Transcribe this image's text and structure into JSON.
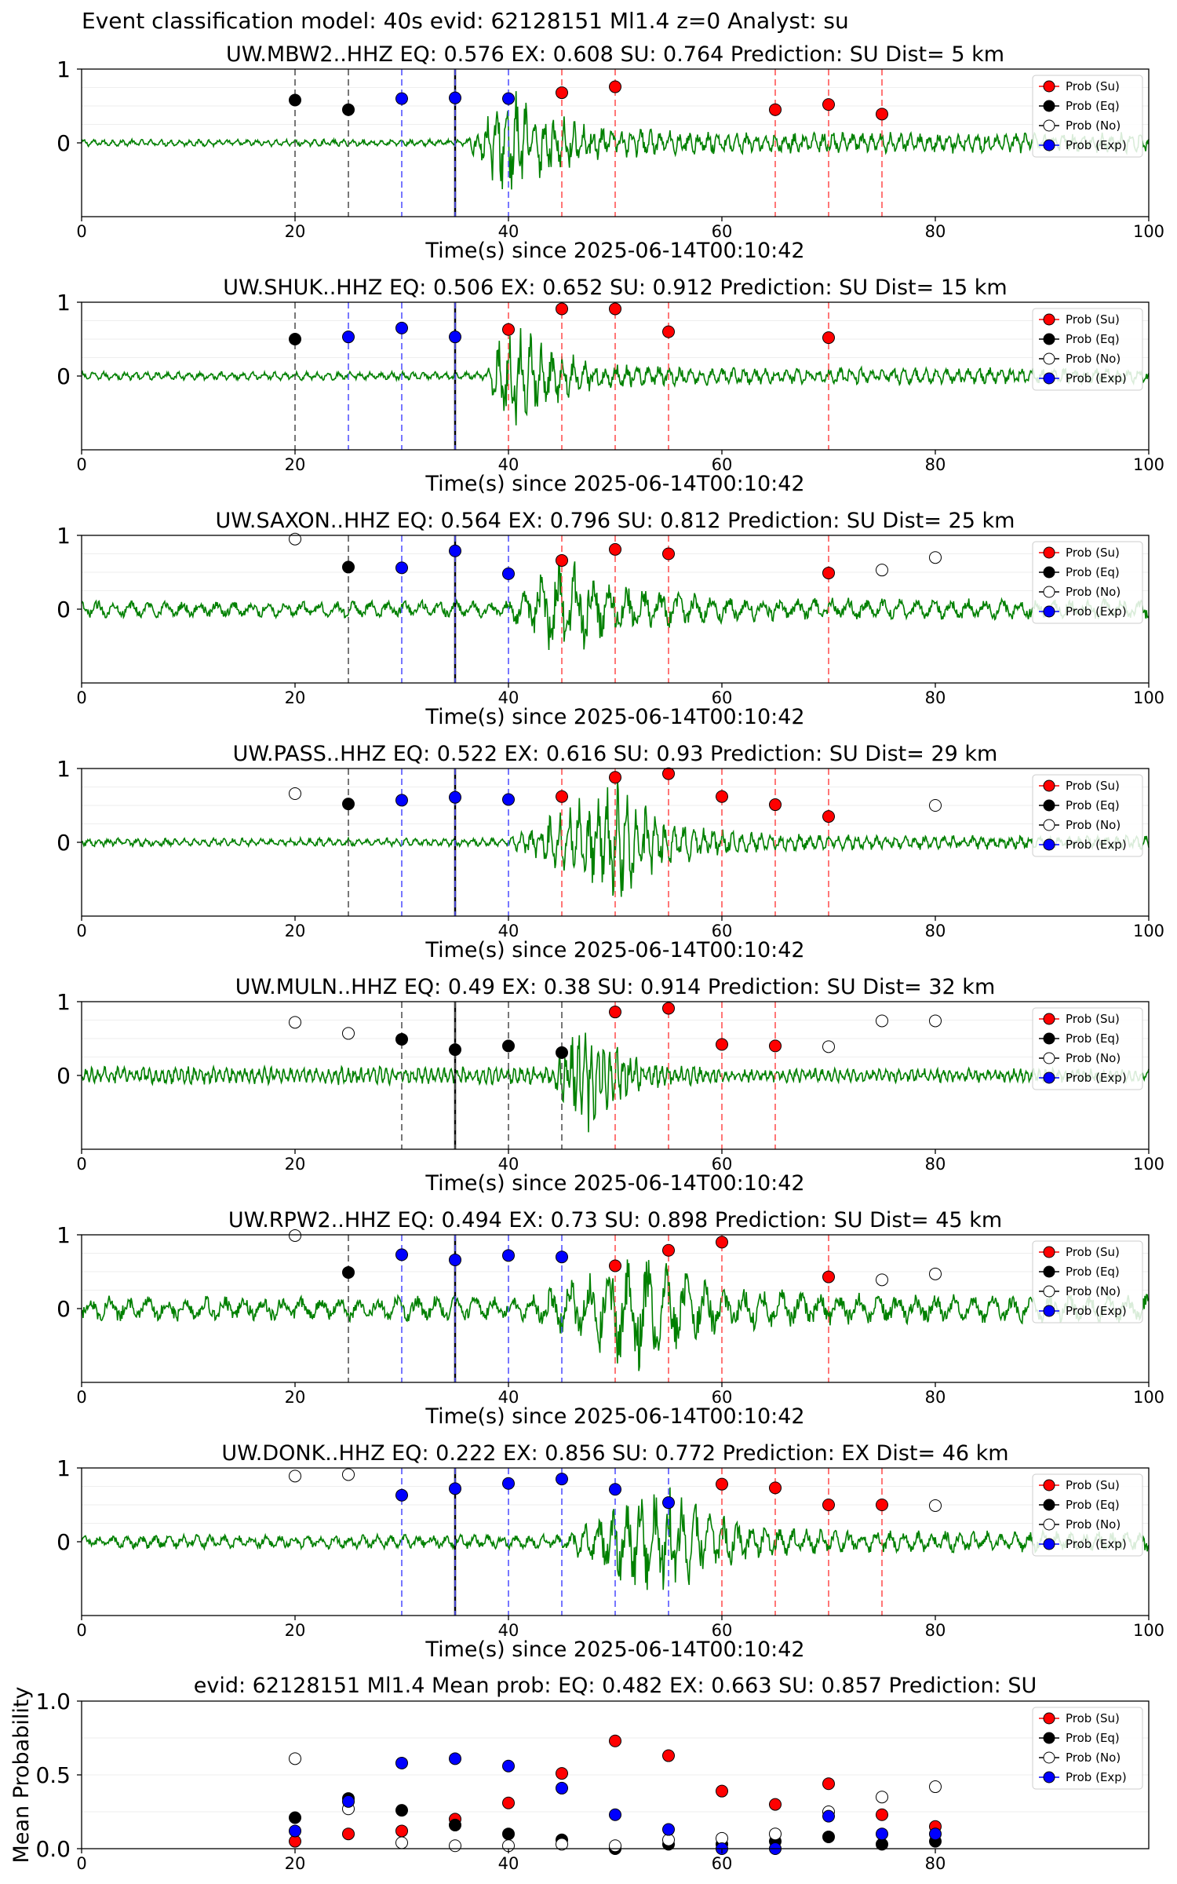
{
  "figure": {
    "title": "Event classification model: 40s evid: 62128151 Ml1.4 z=0 Analyst: su",
    "xlabel": "Time(s) since 2025-06-14T00:10:42",
    "legend_labels": [
      "Prob (Su)",
      "Prob (Eq)",
      "Prob (No)",
      "Prob (Exp)"
    ],
    "colors": {
      "su": "#ff0000",
      "eq": "#000000",
      "no": "#ffffff",
      "exp": "#0000ff",
      "trace": "#008000"
    }
  },
  "chart_data": [
    {
      "type": "scatter",
      "title": "UW.MBW2..HHZ   EQ: 0.576  EX: 0.608  SU: 0.764   Prediction: SU    Dist= 5 km",
      "xlabel": "Time(s) since 2025-06-14T00:10:42",
      "xlim": [
        0,
        100
      ],
      "ylim": [
        -1,
        1
      ],
      "xticks": [
        0,
        20,
        40,
        60,
        80,
        100
      ],
      "yticks": [
        1,
        0
      ],
      "trace": {
        "amp": 0.05,
        "onset": 36,
        "peak": 40,
        "peakAmp": 0.8,
        "decay": 12,
        "tail": 0.15,
        "period": 0.9
      },
      "pick_line": 35,
      "points": [
        {
          "t": 20,
          "p": 0.58,
          "cls": "eq"
        },
        {
          "t": 25,
          "p": 0.45,
          "cls": "eq"
        },
        {
          "t": 30,
          "p": 0.6,
          "cls": "exp"
        },
        {
          "t": 35,
          "p": 0.61,
          "cls": "exp"
        },
        {
          "t": 40,
          "p": 0.6,
          "cls": "exp"
        },
        {
          "t": 45,
          "p": 0.68,
          "cls": "su"
        },
        {
          "t": 50,
          "p": 0.76,
          "cls": "su"
        },
        {
          "t": 65,
          "p": 0.45,
          "cls": "su"
        },
        {
          "t": 70,
          "p": 0.52,
          "cls": "su"
        },
        {
          "t": 75,
          "p": 0.39,
          "cls": "su"
        }
      ]
    },
    {
      "type": "scatter",
      "title": "UW.SHUK..HHZ   EQ: 0.506  EX: 0.652  SU: 0.912   Prediction: SU    Dist= 15 km",
      "xlabel": "Time(s) since 2025-06-14T00:10:42",
      "xlim": [
        0,
        100
      ],
      "ylim": [
        -1,
        1
      ],
      "xticks": [
        0,
        20,
        40,
        60,
        80,
        100
      ],
      "yticks": [
        1,
        0
      ],
      "trace": {
        "amp": 0.06,
        "onset": 38,
        "peak": 40,
        "peakAmp": 0.95,
        "decay": 10,
        "tail": 0.12,
        "period": 1.0
      },
      "pick_line": 35,
      "points": [
        {
          "t": 20,
          "p": 0.5,
          "cls": "eq"
        },
        {
          "t": 25,
          "p": 0.53,
          "cls": "exp"
        },
        {
          "t": 30,
          "p": 0.65,
          "cls": "exp"
        },
        {
          "t": 35,
          "p": 0.53,
          "cls": "exp"
        },
        {
          "t": 40,
          "p": 0.63,
          "cls": "su"
        },
        {
          "t": 45,
          "p": 0.91,
          "cls": "su"
        },
        {
          "t": 50,
          "p": 0.91,
          "cls": "su"
        },
        {
          "t": 55,
          "p": 0.6,
          "cls": "su"
        },
        {
          "t": 70,
          "p": 0.52,
          "cls": "su"
        }
      ]
    },
    {
      "type": "scatter",
      "title": "UW.SAXON..HHZ   EQ: 0.564  EX: 0.796  SU: 0.812   Prediction: SU    Dist= 25 km",
      "xlabel": "Time(s) since 2025-06-14T00:10:42",
      "xlim": [
        0,
        100
      ],
      "ylim": [
        -1,
        1
      ],
      "xticks": [
        0,
        20,
        40,
        60,
        80,
        100
      ],
      "yticks": [
        1,
        0
      ],
      "trace": {
        "amp": 0.12,
        "onset": 40,
        "peak": 45,
        "peakAmp": 0.8,
        "decay": 14,
        "tail": 0.15,
        "period": 1.6
      },
      "pick_line": 35,
      "points": [
        {
          "t": 20,
          "p": 0.95,
          "cls": "no"
        },
        {
          "t": 25,
          "p": 0.57,
          "cls": "eq"
        },
        {
          "t": 30,
          "p": 0.56,
          "cls": "exp"
        },
        {
          "t": 35,
          "p": 0.79,
          "cls": "exp"
        },
        {
          "t": 40,
          "p": 0.48,
          "cls": "exp"
        },
        {
          "t": 45,
          "p": 0.66,
          "cls": "su"
        },
        {
          "t": 50,
          "p": 0.81,
          "cls": "su"
        },
        {
          "t": 55,
          "p": 0.75,
          "cls": "su"
        },
        {
          "t": 70,
          "p": 0.49,
          "cls": "su"
        },
        {
          "t": 75,
          "p": 0.53,
          "cls": "no"
        },
        {
          "t": 80,
          "p": 0.7,
          "cls": "no"
        }
      ]
    },
    {
      "type": "scatter",
      "title": "UW.PASS..HHZ   EQ: 0.522  EX: 0.616  SU: 0.93   Prediction: SU    Dist= 29 km",
      "xlabel": "Time(s) since 2025-06-14T00:10:42",
      "xlim": [
        0,
        100
      ],
      "ylim": [
        -1,
        1
      ],
      "xticks": [
        0,
        20,
        40,
        60,
        80,
        100
      ],
      "yticks": [
        1,
        0
      ],
      "trace": {
        "amp": 0.06,
        "onset": 40,
        "peak": 50,
        "peakAmp": 0.9,
        "decay": 12,
        "tail": 0.1,
        "period": 0.9
      },
      "pick_line": 35,
      "points": [
        {
          "t": 20,
          "p": 0.66,
          "cls": "no"
        },
        {
          "t": 25,
          "p": 0.52,
          "cls": "eq"
        },
        {
          "t": 30,
          "p": 0.57,
          "cls": "exp"
        },
        {
          "t": 35,
          "p": 0.61,
          "cls": "exp"
        },
        {
          "t": 40,
          "p": 0.58,
          "cls": "exp"
        },
        {
          "t": 45,
          "p": 0.62,
          "cls": "su"
        },
        {
          "t": 50,
          "p": 0.88,
          "cls": "su"
        },
        {
          "t": 55,
          "p": 0.93,
          "cls": "su"
        },
        {
          "t": 60,
          "p": 0.62,
          "cls": "su"
        },
        {
          "t": 65,
          "p": 0.51,
          "cls": "su"
        },
        {
          "t": 70,
          "p": 0.35,
          "cls": "su"
        },
        {
          "t": 80,
          "p": 0.5,
          "cls": "no"
        }
      ]
    },
    {
      "type": "scatter",
      "title": "UW.MULN..HHZ   EQ: 0.49  EX: 0.38  SU: 0.914   Prediction: SU    Dist= 32 km",
      "xlabel": "Time(s) since 2025-06-14T00:10:42",
      "xlim": [
        0,
        100
      ],
      "ylim": [
        -1,
        1
      ],
      "xticks": [
        0,
        20,
        40,
        60,
        80,
        100
      ],
      "yticks": [
        1,
        0
      ],
      "trace": {
        "amp": 0.13,
        "onset": 44,
        "peak": 47,
        "peakAmp": 0.95,
        "decay": 8,
        "tail": 0.1,
        "period": 0.6
      },
      "pick_line": 35,
      "points": [
        {
          "t": 20,
          "p": 0.72,
          "cls": "no"
        },
        {
          "t": 25,
          "p": 0.57,
          "cls": "no"
        },
        {
          "t": 30,
          "p": 0.49,
          "cls": "eq"
        },
        {
          "t": 35,
          "p": 0.35,
          "cls": "eq"
        },
        {
          "t": 40,
          "p": 0.4,
          "cls": "eq"
        },
        {
          "t": 45,
          "p": 0.31,
          "cls": "eq"
        },
        {
          "t": 50,
          "p": 0.86,
          "cls": "su"
        },
        {
          "t": 55,
          "p": 0.91,
          "cls": "su"
        },
        {
          "t": 60,
          "p": 0.42,
          "cls": "su"
        },
        {
          "t": 65,
          "p": 0.4,
          "cls": "su"
        },
        {
          "t": 70,
          "p": 0.39,
          "cls": "no"
        },
        {
          "t": 75,
          "p": 0.74,
          "cls": "no"
        },
        {
          "t": 80,
          "p": 0.74,
          "cls": "no"
        }
      ]
    },
    {
      "type": "scatter",
      "title": "UW.RPW2..HHZ   EQ: 0.494  EX: 0.73  SU: 0.898   Prediction: SU    Dist= 45 km",
      "xlabel": "Time(s) since 2025-06-14T00:10:42",
      "xlim": [
        0,
        100
      ],
      "ylim": [
        -1,
        1
      ],
      "xticks": [
        0,
        20,
        40,
        60,
        80,
        100
      ],
      "yticks": [
        1,
        0
      ],
      "trace": {
        "amp": 0.18,
        "onset": 42,
        "peak": 52,
        "peakAmp": 0.9,
        "decay": 14,
        "tail": 0.2,
        "period": 1.8
      },
      "pick_line": 35,
      "points": [
        {
          "t": 20,
          "p": 0.99,
          "cls": "no"
        },
        {
          "t": 25,
          "p": 0.49,
          "cls": "eq"
        },
        {
          "t": 30,
          "p": 0.73,
          "cls": "exp"
        },
        {
          "t": 35,
          "p": 0.66,
          "cls": "exp"
        },
        {
          "t": 40,
          "p": 0.72,
          "cls": "exp"
        },
        {
          "t": 45,
          "p": 0.7,
          "cls": "exp"
        },
        {
          "t": 50,
          "p": 0.58,
          "cls": "su"
        },
        {
          "t": 55,
          "p": 0.79,
          "cls": "su"
        },
        {
          "t": 60,
          "p": 0.9,
          "cls": "su"
        },
        {
          "t": 70,
          "p": 0.43,
          "cls": "su"
        },
        {
          "t": 75,
          "p": 0.39,
          "cls": "no"
        },
        {
          "t": 80,
          "p": 0.47,
          "cls": "no"
        }
      ]
    },
    {
      "type": "scatter",
      "title": "UW.DONK..HHZ   EQ: 0.222  EX: 0.856  SU: 0.772   Prediction: EX    Dist= 46 km",
      "xlabel": "Time(s) since 2025-06-14T00:10:42",
      "xlim": [
        0,
        100
      ],
      "ylim": [
        -1,
        1
      ],
      "xticks": [
        0,
        20,
        40,
        60,
        80,
        100
      ],
      "yticks": [
        1,
        0
      ],
      "trace": {
        "amp": 0.1,
        "onset": 45,
        "peak": 55,
        "peakAmp": 0.9,
        "decay": 10,
        "tail": 0.15,
        "period": 1.3
      },
      "pick_line": 35,
      "points": [
        {
          "t": 20,
          "p": 0.89,
          "cls": "no"
        },
        {
          "t": 25,
          "p": 0.91,
          "cls": "no"
        },
        {
          "t": 30,
          "p": 0.63,
          "cls": "exp"
        },
        {
          "t": 35,
          "p": 0.72,
          "cls": "exp"
        },
        {
          "t": 40,
          "p": 0.79,
          "cls": "exp"
        },
        {
          "t": 45,
          "p": 0.85,
          "cls": "exp"
        },
        {
          "t": 50,
          "p": 0.71,
          "cls": "exp"
        },
        {
          "t": 55,
          "p": 0.53,
          "cls": "exp"
        },
        {
          "t": 60,
          "p": 0.78,
          "cls": "su"
        },
        {
          "t": 65,
          "p": 0.73,
          "cls": "su"
        },
        {
          "t": 70,
          "p": 0.5,
          "cls": "su"
        },
        {
          "t": 75,
          "p": 0.5,
          "cls": "su"
        },
        {
          "t": 80,
          "p": 0.49,
          "cls": "no"
        }
      ]
    },
    {
      "type": "scatter",
      "title": "evid: 62128151  Ml1.4   Mean prob:   EQ: 0.482  EX: 0.663  SU: 0.857   Prediction: SU",
      "ylabel": "Mean Probability",
      "xlim": [
        0,
        100
      ],
      "ylim": [
        0,
        1
      ],
      "xticks": [
        0,
        20,
        40,
        60,
        80
      ],
      "yticks": [
        1.0,
        0.5,
        0.0
      ],
      "ytick_labels": [
        "1.0",
        "0.5",
        "0.0"
      ],
      "t": [
        20,
        25,
        30,
        35,
        40,
        45,
        50,
        55,
        60,
        65,
        70,
        75,
        80
      ],
      "series": [
        {
          "cls": "su",
          "values": [
            0.05,
            0.1,
            0.12,
            0.2,
            0.31,
            0.51,
            0.73,
            0.63,
            0.39,
            0.3,
            0.44,
            0.23,
            0.15
          ]
        },
        {
          "cls": "eq",
          "values": [
            0.21,
            0.34,
            0.26,
            0.16,
            0.1,
            0.06,
            0.0,
            0.03,
            0.03,
            0.05,
            0.08,
            0.03,
            0.05
          ]
        },
        {
          "cls": "no",
          "values": [
            0.61,
            0.27,
            0.04,
            0.02,
            0.02,
            0.03,
            0.02,
            0.06,
            0.07,
            0.1,
            0.25,
            0.35,
            0.42
          ]
        },
        {
          "cls": "exp",
          "values": [
            0.12,
            0.32,
            0.58,
            0.61,
            0.56,
            0.41,
            0.23,
            0.13,
            0.0,
            0.0,
            0.22,
            0.1,
            0.1
          ]
        }
      ]
    }
  ]
}
